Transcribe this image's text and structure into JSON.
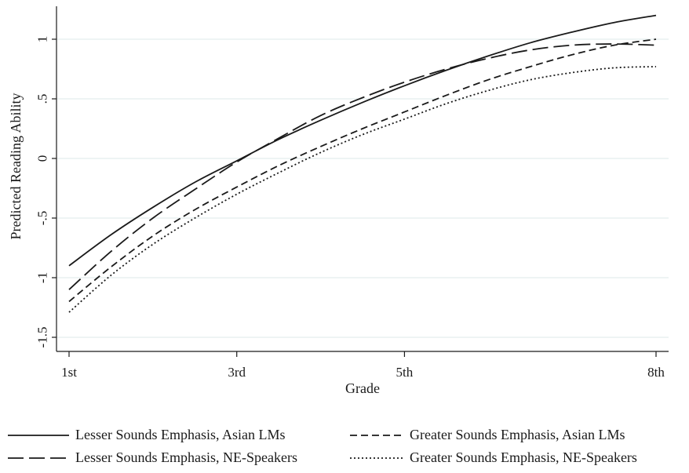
{
  "chart_data": {
    "type": "line",
    "title": "",
    "xlabel": "Grade",
    "ylabel": "Predicted Reading Ability",
    "x_ticks": [
      {
        "grade": 1,
        "label": "1st"
      },
      {
        "grade": 3,
        "label": "3rd"
      },
      {
        "grade": 5,
        "label": "5th"
      },
      {
        "grade": 8,
        "label": "8th"
      }
    ],
    "y_ticks": [
      {
        "value": 1,
        "label": "1"
      },
      {
        "value": 0.5,
        "label": ".5"
      },
      {
        "value": 0,
        "label": "0"
      },
      {
        "value": -0.5,
        "label": "-.5"
      },
      {
        "value": -1,
        "label": "-1"
      },
      {
        "value": -1.5,
        "label": "-1.5"
      }
    ],
    "xlim": [
      1,
      8
    ],
    "ylim": [
      -1.5,
      1.2
    ],
    "grid": "horizontal",
    "legend_position": "bottom",
    "x": [
      1,
      1.5,
      2,
      2.5,
      3,
      3.5,
      4,
      4.5,
      5,
      5.5,
      6,
      6.5,
      7,
      7.5,
      8
    ],
    "series": [
      {
        "name": "Lesser Sounds Emphasis, Asian LMs",
        "dash": "solid",
        "values": [
          -0.9,
          -0.64,
          -0.41,
          -0.2,
          -0.02,
          0.16,
          0.32,
          0.47,
          0.61,
          0.74,
          0.86,
          0.97,
          1.06,
          1.14,
          1.2
        ]
      },
      {
        "name": "Greater Sounds Emphasis, Asian LMs",
        "dash": "medium",
        "values": [
          -1.2,
          -0.91,
          -0.65,
          -0.43,
          -0.24,
          -0.06,
          0.1,
          0.25,
          0.39,
          0.53,
          0.66,
          0.77,
          0.87,
          0.95,
          1.0
        ]
      },
      {
        "name": "Lesser Sounds Emphasis, NE-Speakers",
        "dash": "long",
        "values": [
          -1.1,
          -0.78,
          -0.5,
          -0.26,
          -0.03,
          0.17,
          0.36,
          0.51,
          0.64,
          0.75,
          0.84,
          0.91,
          0.95,
          0.96,
          0.95
        ]
      },
      {
        "name": "Greater Sounds Emphasis, NE-Speakers",
        "dash": "dotted",
        "values": [
          -1.29,
          -0.98,
          -0.72,
          -0.5,
          -0.3,
          -0.12,
          0.05,
          0.2,
          0.33,
          0.46,
          0.57,
          0.66,
          0.72,
          0.76,
          0.77
        ]
      }
    ]
  }
}
